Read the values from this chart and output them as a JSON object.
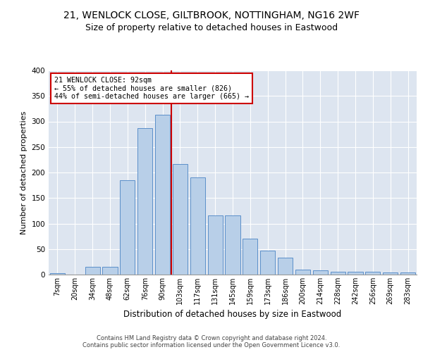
{
  "title1": "21, WENLOCK CLOSE, GILTBROOK, NOTTINGHAM, NG16 2WF",
  "title2": "Size of property relative to detached houses in Eastwood",
  "xlabel": "Distribution of detached houses by size in Eastwood",
  "ylabel": "Number of detached properties",
  "categories": [
    "7sqm",
    "20sqm",
    "34sqm",
    "48sqm",
    "62sqm",
    "76sqm",
    "90sqm",
    "103sqm",
    "117sqm",
    "131sqm",
    "145sqm",
    "159sqm",
    "173sqm",
    "186sqm",
    "200sqm",
    "214sqm",
    "228sqm",
    "242sqm",
    "256sqm",
    "269sqm",
    "283sqm"
  ],
  "values": [
    3,
    0,
    15,
    15,
    185,
    287,
    313,
    216,
    190,
    116,
    116,
    71,
    47,
    33,
    10,
    8,
    6,
    5,
    5,
    4,
    4
  ],
  "bar_color": "#b8cfe8",
  "bar_edge_color": "#5b8fc9",
  "property_size": "92sqm",
  "annotation_title": "21 WENLOCK CLOSE: 92sqm",
  "annotation_line1": "← 55% of detached houses are smaller (826)",
  "annotation_line2": "44% of semi-detached houses are larger (665) →",
  "annotation_box_color": "#ffffff",
  "annotation_box_edge": "#cc0000",
  "vline_color": "#cc0000",
  "footer1": "Contains HM Land Registry data © Crown copyright and database right 2024.",
  "footer2": "Contains public sector information licensed under the Open Government Licence v3.0.",
  "ylim": [
    0,
    400
  ],
  "yticks": [
    0,
    50,
    100,
    150,
    200,
    250,
    300,
    350,
    400
  ],
  "bg_color": "#dde5f0",
  "title1_fontsize": 10,
  "title2_fontsize": 9
}
